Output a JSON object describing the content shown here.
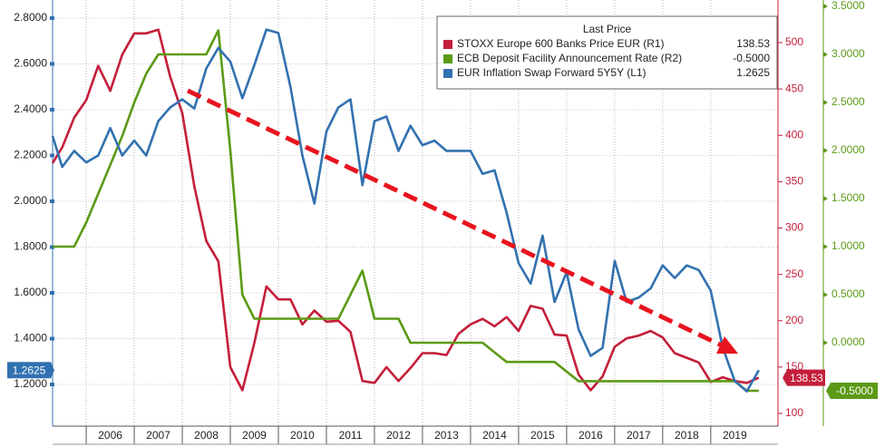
{
  "chart_data": {
    "type": "line",
    "legend_title": "Last Price",
    "x": [
      2005.3,
      2005.5,
      2005.75,
      2006.0,
      2006.25,
      2006.5,
      2006.75,
      2007.0,
      2007.25,
      2007.5,
      2007.75,
      2008.0,
      2008.25,
      2008.5,
      2008.75,
      2009.0,
      2009.25,
      2009.5,
      2009.75,
      2010.0,
      2010.25,
      2010.5,
      2010.75,
      2011.0,
      2011.25,
      2011.5,
      2011.75,
      2012.0,
      2012.25,
      2012.5,
      2012.75,
      2013.0,
      2013.25,
      2013.5,
      2013.75,
      2014.0,
      2014.25,
      2014.5,
      2014.75,
      2015.0,
      2015.25,
      2015.5,
      2015.75,
      2016.0,
      2016.25,
      2016.5,
      2016.75,
      2017.0,
      2017.25,
      2017.5,
      2017.75,
      2018.0,
      2018.25,
      2018.5,
      2018.75,
      2019.0,
      2019.25,
      2019.5,
      2019.75,
      2020.0
    ],
    "xlim": [
      2005.3,
      2020.4
    ],
    "xticks": [
      2006,
      2007,
      2008,
      2009,
      2010,
      2011,
      2012,
      2013,
      2014,
      2015,
      2016,
      2017,
      2018,
      2019
    ],
    "ylim": [
      1.018,
      2.879
    ],
    "yticks": [
      {
        "value": 1.2,
        "label": "1.2000"
      },
      {
        "value": 1.4,
        "label": "1.4000"
      },
      {
        "value": 1.6,
        "label": "1.6000"
      },
      {
        "value": 1.8,
        "label": "1.8000"
      },
      {
        "value": 2.0,
        "label": "2.0000"
      },
      {
        "value": 2.2,
        "label": "2.2000"
      },
      {
        "value": 2.4,
        "label": "2.4000"
      },
      {
        "value": 2.6,
        "label": "2.6000"
      },
      {
        "value": 2.8,
        "label": "2.8000"
      }
    ],
    "y2lim": [
      86.3,
      546
    ],
    "y2ticks": [
      100,
      150,
      200,
      250,
      300,
      350,
      400,
      450,
      500
    ],
    "y3lim": [
      -0.868,
      3.566
    ],
    "y3ticks": [
      {
        "value": 0.0,
        "label": "0.0000"
      },
      {
        "value": 0.5,
        "label": "0.5000"
      },
      {
        "value": 1.0,
        "label": "1.0000"
      },
      {
        "value": 1.5,
        "label": "1.5000"
      },
      {
        "value": 2.0,
        "label": "2.0000"
      },
      {
        "value": 2.5,
        "label": "2.5000"
      },
      {
        "value": 3.0,
        "label": "3.0000"
      },
      {
        "value": 3.5,
        "label": "3.5000"
      }
    ],
    "grid": true,
    "legend": "upper right",
    "series": [
      {
        "name": "STOXX Europe 600 Banks Price EUR (R1)",
        "color": "#c41e3a",
        "axis": "y2",
        "legend_value": "138.53",
        "values": [
          370,
          387,
          419,
          438,
          475,
          448,
          487,
          510,
          510,
          514,
          463,
          424,
          345,
          286,
          264,
          150,
          125,
          176,
          237,
          223,
          223,
          196,
          211,
          199,
          200,
          188,
          135,
          133,
          150,
          135,
          149,
          165,
          165,
          163,
          186,
          196,
          202,
          194,
          204,
          189,
          216,
          213,
          185,
          184,
          142,
          125,
          140,
          172,
          181,
          184,
          189,
          182,
          165,
          160,
          155,
          134,
          139,
          135,
          133,
          138.53
        ]
      },
      {
        "name": "ECB Deposit Facility Announcement Rate (R2)",
        "color": "#5b9a16",
        "axis": "y3",
        "legend_value": "-0.5000",
        "values": [
          1.0,
          1.0,
          1.0,
          1.25,
          1.55,
          1.85,
          2.15,
          2.5,
          2.8,
          3.0,
          3.0,
          3.0,
          3.0,
          3.0,
          3.25,
          2.0,
          0.5,
          0.25,
          0.25,
          0.25,
          0.25,
          0.25,
          0.25,
          0.25,
          0.25,
          0.5,
          0.75,
          0.25,
          0.25,
          0.25,
          0.0,
          0.0,
          0.0,
          0.0,
          0.0,
          0.0,
          0.0,
          -0.1,
          -0.2,
          -0.2,
          -0.2,
          -0.2,
          -0.2,
          -0.3,
          -0.4,
          -0.4,
          -0.4,
          -0.4,
          -0.4,
          -0.4,
          -0.4,
          -0.4,
          -0.4,
          -0.4,
          -0.4,
          -0.4,
          -0.4,
          -0.4,
          -0.5,
          -0.5
        ]
      },
      {
        "name": "EUR Inflation Swap Forward 5Y5Y (L1)",
        "color": "#3271b0",
        "axis": "y",
        "legend_value": "1.2625",
        "values": [
          2.285,
          2.15,
          2.22,
          2.17,
          2.2,
          2.32,
          2.2,
          2.265,
          2.2,
          2.35,
          2.41,
          2.445,
          2.405,
          2.58,
          2.67,
          2.61,
          2.45,
          2.595,
          2.75,
          2.735,
          2.5,
          2.2,
          1.99,
          2.305,
          2.41,
          2.445,
          2.07,
          2.35,
          2.37,
          2.22,
          2.33,
          2.245,
          2.265,
          2.22,
          2.22,
          2.22,
          2.12,
          2.135,
          1.95,
          1.73,
          1.64,
          1.85,
          1.56,
          1.69,
          1.44,
          1.325,
          1.36,
          1.74,
          1.56,
          1.58,
          1.62,
          1.72,
          1.665,
          1.72,
          1.7,
          1.61,
          1.36,
          1.215,
          1.17,
          1.2625
        ]
      }
    ]
  }
}
